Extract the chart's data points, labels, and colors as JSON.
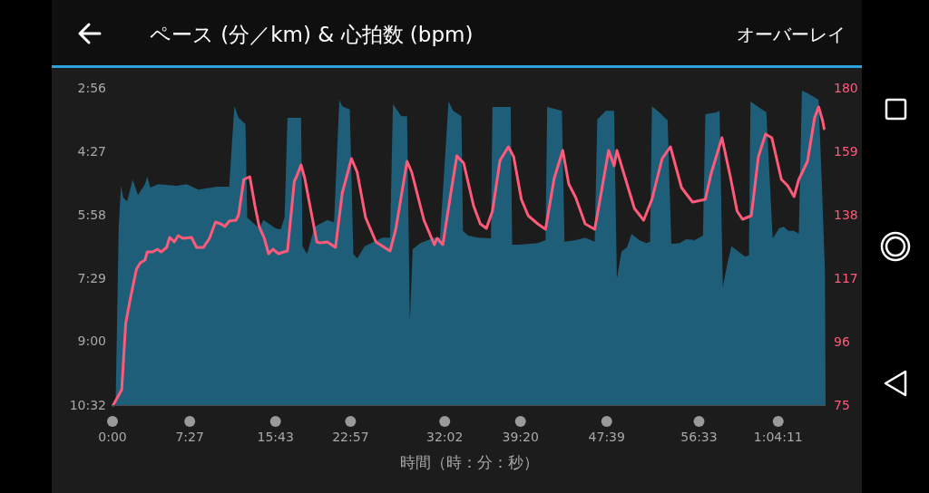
{
  "chart_data": {
    "type": "area",
    "title": "ペース (分／km) & 心拍数 (bpm)",
    "xlabel": "時間（時：分：秒）",
    "annotations": [
      "オーバーレイ"
    ],
    "xlim": [
      0,
      68.75
    ],
    "xticks": [
      {
        "value": 0,
        "label": "0:00"
      },
      {
        "value": 7.45,
        "label": "7:27"
      },
      {
        "value": 15.717,
        "label": "15:43"
      },
      {
        "value": 22.95,
        "label": "22:57"
      },
      {
        "value": 32.033,
        "label": "32:02"
      },
      {
        "value": 39.333,
        "label": "39:20"
      },
      {
        "value": 47.65,
        "label": "47:39"
      },
      {
        "value": 56.55,
        "label": "56:33"
      },
      {
        "value": 64.183,
        "label": "1:04:11"
      }
    ],
    "ylim": [
      10.533,
      2.933
    ],
    "yticks": [
      {
        "value": 2.933,
        "label": "2:56"
      },
      {
        "value": 4.45,
        "label": "4:27"
      },
      {
        "value": 5.967,
        "label": "5:58"
      },
      {
        "value": 7.483,
        "label": "7:29"
      },
      {
        "value": 9,
        "label": "9:00"
      },
      {
        "value": 10.533,
        "label": "10:32"
      }
    ],
    "y2lim": [
      75,
      180
    ],
    "y2ticks": [
      75,
      96,
      117,
      138,
      159,
      180
    ],
    "series": [
      {
        "color": "#1f5e78",
        "x": [
          0.3,
          0.6,
          0.82,
          1.04,
          1.42,
          1.94,
          2.46,
          3.13,
          3.35,
          3.65,
          4.4,
          6.18,
          7.15,
          8.28,
          10.09,
          11.25,
          11.75,
          12.16,
          12.82,
          12.99,
          14.14,
          14.56,
          15.72,
          16.22,
          16.59,
          16.87,
          18.18,
          18.32,
          18.76,
          19.48,
          20.71,
          21.36,
          21.87,
          22.15,
          22.88,
          23.22,
          23.59,
          24.31,
          26.03,
          26.76,
          27.04,
          27.85,
          28.4,
          28.67,
          28.94,
          29.67,
          31.03,
          31.58,
          32.4,
          32.84,
          33.64,
          33.79,
          34.3,
          35.25,
          36.49,
          36.63,
          38.39,
          38.53,
          39.19,
          41.0,
          41.75,
          41.91,
          43.33,
          43.58,
          44.66,
          45.57,
          46.49,
          46.74,
          47.57,
          48.36,
          48.63,
          49.07,
          49.61,
          50.05,
          50.77,
          51.48,
          51.83,
          52.01,
          52.72,
          53.52,
          53.88,
          54.68,
          55.3,
          56.11,
          56.93,
          57.16,
          58.23,
          58.53,
          58.84,
          59.3,
          59.68,
          60.37,
          60.98,
          61.36,
          61.51,
          63.04,
          63.65,
          64.26,
          64.72,
          65.18,
          65.71,
          66.17,
          66.47,
          67.01,
          68.08,
          68.38,
          68.69,
          68.75
        ],
        "values": [
          10.53,
          6.26,
          5.28,
          5.56,
          5.65,
          5.13,
          5.5,
          5.24,
          5.06,
          5.32,
          5.24,
          5.28,
          5.24,
          5.37,
          5.3,
          5.3,
          3.37,
          3.65,
          3.8,
          6.04,
          6.3,
          6.1,
          6.3,
          6.32,
          6.04,
          3.65,
          3.65,
          6.73,
          6.91,
          6.26,
          6.1,
          6.15,
          3.22,
          3.37,
          3.45,
          6.91,
          7.02,
          6.73,
          6.52,
          6.52,
          3.32,
          3.61,
          3.61,
          8.53,
          6.8,
          6.65,
          6.52,
          6.52,
          3.26,
          3.48,
          3.61,
          6.36,
          6.47,
          6.52,
          6.54,
          3.39,
          3.39,
          6.69,
          6.69,
          6.65,
          6.58,
          3.39,
          3.48,
          6.62,
          6.58,
          6.52,
          6.62,
          3.69,
          3.48,
          3.48,
          7.51,
          6.86,
          6.75,
          6.43,
          6.58,
          6.65,
          6.62,
          3.37,
          3.52,
          3.71,
          6.67,
          6.65,
          6.56,
          6.58,
          6.47,
          3.56,
          3.52,
          3.48,
          7.71,
          7.12,
          6.73,
          6.86,
          6.97,
          6.95,
          3.26,
          3.52,
          6.54,
          6.3,
          6.26,
          6.36,
          6.36,
          6.43,
          3.0,
          3.06,
          3.22,
          5.17,
          7.34,
          10.53
        ]
      },
      {
        "type": "line",
        "axis": "y2",
        "color": "#ff5a7a",
        "x": [
          0.07,
          0.89,
          1.27,
          1.71,
          2.31,
          2.68,
          3.13,
          3.35,
          3.87,
          4.32,
          4.69,
          5.22,
          5.51,
          5.96,
          6.33,
          6.78,
          7.62,
          8.11,
          8.77,
          9.35,
          9.93,
          10.43,
          10.84,
          11.25,
          11.91,
          12.16,
          12.66,
          13.24,
          13.73,
          14.14,
          14.64,
          15.05,
          15.47,
          16.01,
          16.51,
          16.87,
          17.53,
          17.74,
          18.18,
          18.54,
          19.7,
          20.06,
          20.71,
          21.5,
          22.15,
          23.04,
          23.59,
          24.4,
          25.4,
          26.76,
          27.31,
          28.4,
          28.85,
          30.03,
          31.03,
          31.3,
          31.85,
          32.62,
          33.2,
          33.86,
          34.81,
          35.46,
          36.05,
          36.63,
          37.36,
          38.17,
          38.68,
          39.42,
          40.08,
          41.0,
          41.75,
          42.58,
          43.41,
          43.99,
          44.66,
          45.57,
          46.49,
          46.9,
          47.83,
          48.36,
          48.63,
          50.32,
          51.21,
          52.01,
          52.99,
          53.79,
          54.86,
          55.39,
          55.93,
          57.16,
          57.7,
          58.76,
          59.53,
          60.22,
          60.75,
          61.59,
          62.27,
          62.96,
          63.57,
          64.49,
          65.1,
          65.71,
          66.17,
          67.01,
          67.69,
          68.08,
          68.46,
          68.61
        ],
        "values": [
          75.0,
          80.1,
          102.0,
          110.1,
          120.0,
          122.1,
          123.0,
          125.7,
          125.7,
          126.6,
          125.7,
          127.2,
          130.5,
          129.0,
          131.1,
          130.2,
          130.5,
          127.2,
          127.2,
          130.2,
          135.6,
          135.0,
          134.1,
          135.9,
          136.2,
          138.0,
          149.7,
          150.6,
          141.0,
          134.1,
          130.2,
          125.1,
          126.6,
          125.1,
          125.7,
          126.0,
          149.1,
          150.6,
          154.5,
          150.0,
          129.0,
          128.7,
          129.0,
          127.2,
          145.2,
          156.6,
          152.1,
          137.1,
          129.0,
          126.0,
          133.2,
          155.7,
          152.1,
          136.2,
          128.1,
          130.2,
          128.1,
          145.2,
          157.5,
          155.1,
          141.0,
          135.0,
          133.5,
          139.2,
          156.0,
          160.5,
          157.2,
          143.1,
          137.7,
          135.0,
          133.2,
          150.0,
          159.3,
          148.2,
          143.7,
          135.0,
          133.2,
          141.0,
          159.3,
          154.2,
          159.3,
          140.1,
          136.2,
          143.1,
          156.6,
          160.5,
          147.0,
          144.6,
          142.2,
          143.1,
          151.5,
          163.5,
          151.2,
          139.2,
          136.5,
          137.7,
          157.2,
          164.7,
          163.5,
          149.7,
          147.6,
          144.0,
          149.7,
          155.7,
          170.1,
          173.7,
          169.2,
          166.5
        ]
      }
    ]
  }
}
